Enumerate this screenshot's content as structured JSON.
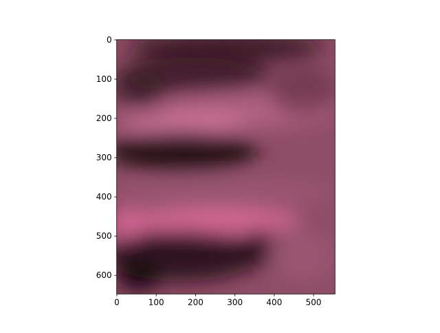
{
  "chart_data": {
    "type": "image",
    "xlim": [
      -0.5,
      554.5
    ],
    "ylim": [
      647.5,
      -0.5
    ],
    "xticks": [
      0,
      100,
      200,
      300,
      400,
      500
    ],
    "yticks": [
      0,
      100,
      200,
      300,
      400,
      500,
      600
    ]
  }
}
